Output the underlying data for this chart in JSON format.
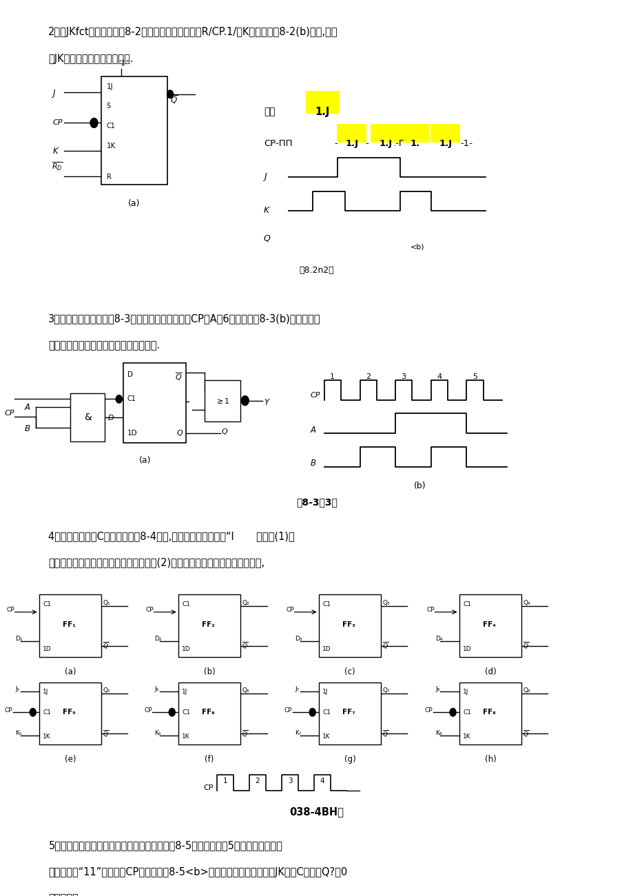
{
  "page_bg": "#ffffff",
  "highlight_color": "#ffff00",
  "text_color": "#000000",
  "sec2_line1": "2、某JKfct发器电路如图8-2（八）所示，其输入端R/CP.1/和K的波形如图8-2(b)所示,试画",
  "sec2_line2": "出JK触发器输出端。的波形图.",
  "sec3_line1": "3、某。触发器电路如图8-3（八）所示，其输入端CP、A和6的某形如图8-3(b)所示，试行",
  "sec3_line2": "出。触发器恰出端。和输出灿丸的波形图.",
  "sec4_line1": "4、已知时钟胶冲C户的波形如图8-4所示,设它们初始状态均为“I       要求：(1)试",
  "sec4_line2": "分别画出图中各触发器输由端。的波形：(2)指出哪些触发着电路具有计数功能,",
  "sec5_line1": "5、由。触发器和欢触发器构成的时序电路如图8-5（八）所示，5知两个触发器的初",
  "sec5_line2": "始状态均为“11”时钟脉冲CP的波形如图8-5<b>所示，试画出均触发器和JK触发C输出战Q?和0",
  "sec5_line3": "的波形图。",
  "cap2": "图8.2n2图",
  "cap3": "图8-3题3图",
  "cap4": "038-4BH图"
}
